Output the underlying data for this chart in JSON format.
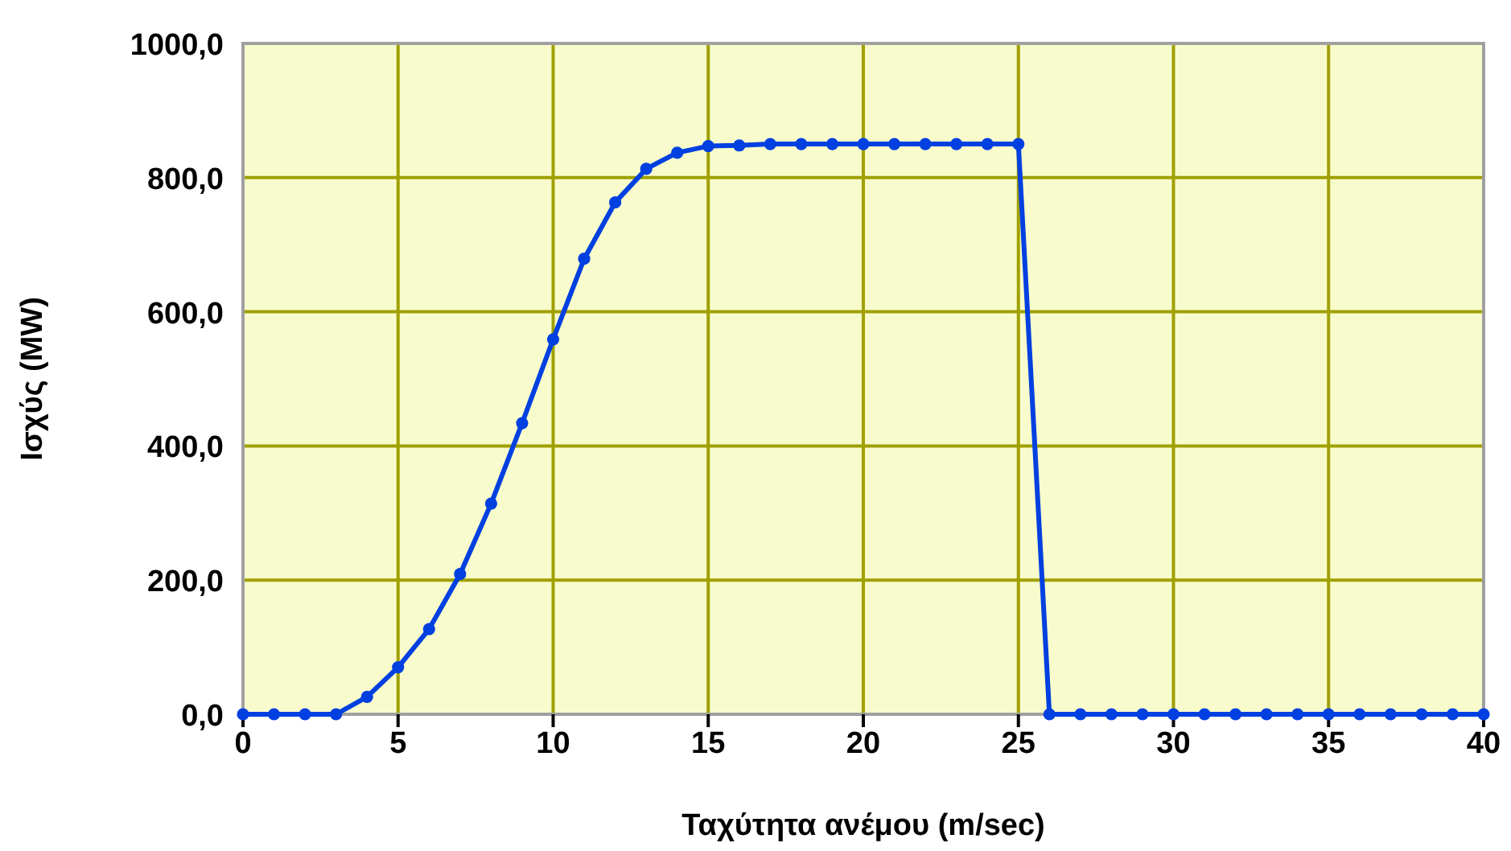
{
  "chart_data": {
    "type": "line",
    "xlabel": "Ταχύτητα ανέμου (m/sec)",
    "ylabel": "Ισχύς (MW)",
    "x": [
      0,
      1,
      2,
      3,
      4,
      5,
      6,
      7,
      8,
      9,
      10,
      11,
      12,
      13,
      14,
      15,
      16,
      17,
      18,
      19,
      20,
      21,
      22,
      23,
      24,
      25,
      26,
      27,
      28,
      29,
      30,
      31,
      32,
      33,
      34,
      35,
      36,
      37,
      38,
      39,
      40
    ],
    "series": [
      {
        "color": "#0040e0",
        "values": [
          0,
          0,
          0,
          0,
          26,
          70,
          127,
          209,
          314,
          434,
          559,
          679,
          763,
          813,
          837,
          847,
          848,
          850,
          850,
          850,
          850,
          850,
          850,
          850,
          850,
          850,
          0,
          0,
          0,
          0,
          0,
          0,
          0,
          0,
          0,
          0,
          0,
          0,
          0,
          0,
          0
        ]
      }
    ],
    "xlim": [
      0,
      40
    ],
    "xticks": [
      0,
      5,
      10,
      15,
      20,
      25,
      30,
      35,
      40
    ],
    "ylim": [
      0,
      1000
    ],
    "yticks": [
      {
        "value": 0,
        "label": "0,0"
      },
      {
        "value": 200,
        "label": "200,0"
      },
      {
        "value": 400,
        "label": "400,0"
      },
      {
        "value": 600,
        "label": "600,0"
      },
      {
        "value": 800,
        "label": "800,0"
      },
      {
        "value": 1000,
        "label": "1000,0"
      }
    ],
    "grid": true,
    "marker": "circle",
    "line_style": "solid"
  }
}
